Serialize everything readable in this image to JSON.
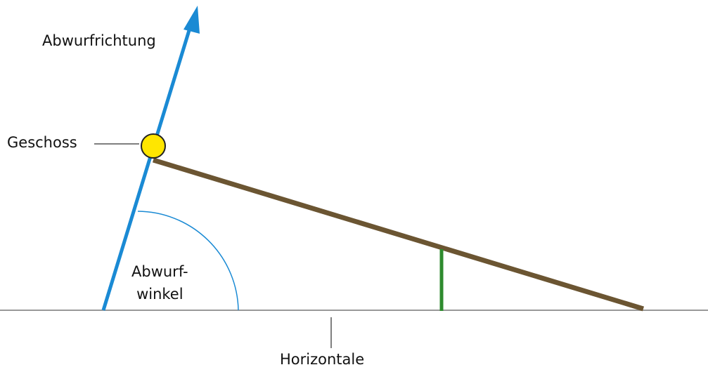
{
  "labels": {
    "direction": "Abwurfrichtung",
    "projectile": "Geschoss",
    "angle_line1": "Abwurf-",
    "angle_line2": "winkel",
    "horizontal": "Horizontale"
  },
  "colors": {
    "direction_arrow": "#1a8ad4",
    "projectile_fill": "#ffe600",
    "projectile_stroke": "#222222",
    "slanted_line": "#6b5532",
    "vertical_marker": "#2e8b2e",
    "horizontal_line": "#999999",
    "angle_arc": "#1a8ad4",
    "leader_lines": "#555555"
  },
  "icons": {
    "arrowhead": "arrowhead-icon",
    "projectile": "projectile-icon"
  }
}
